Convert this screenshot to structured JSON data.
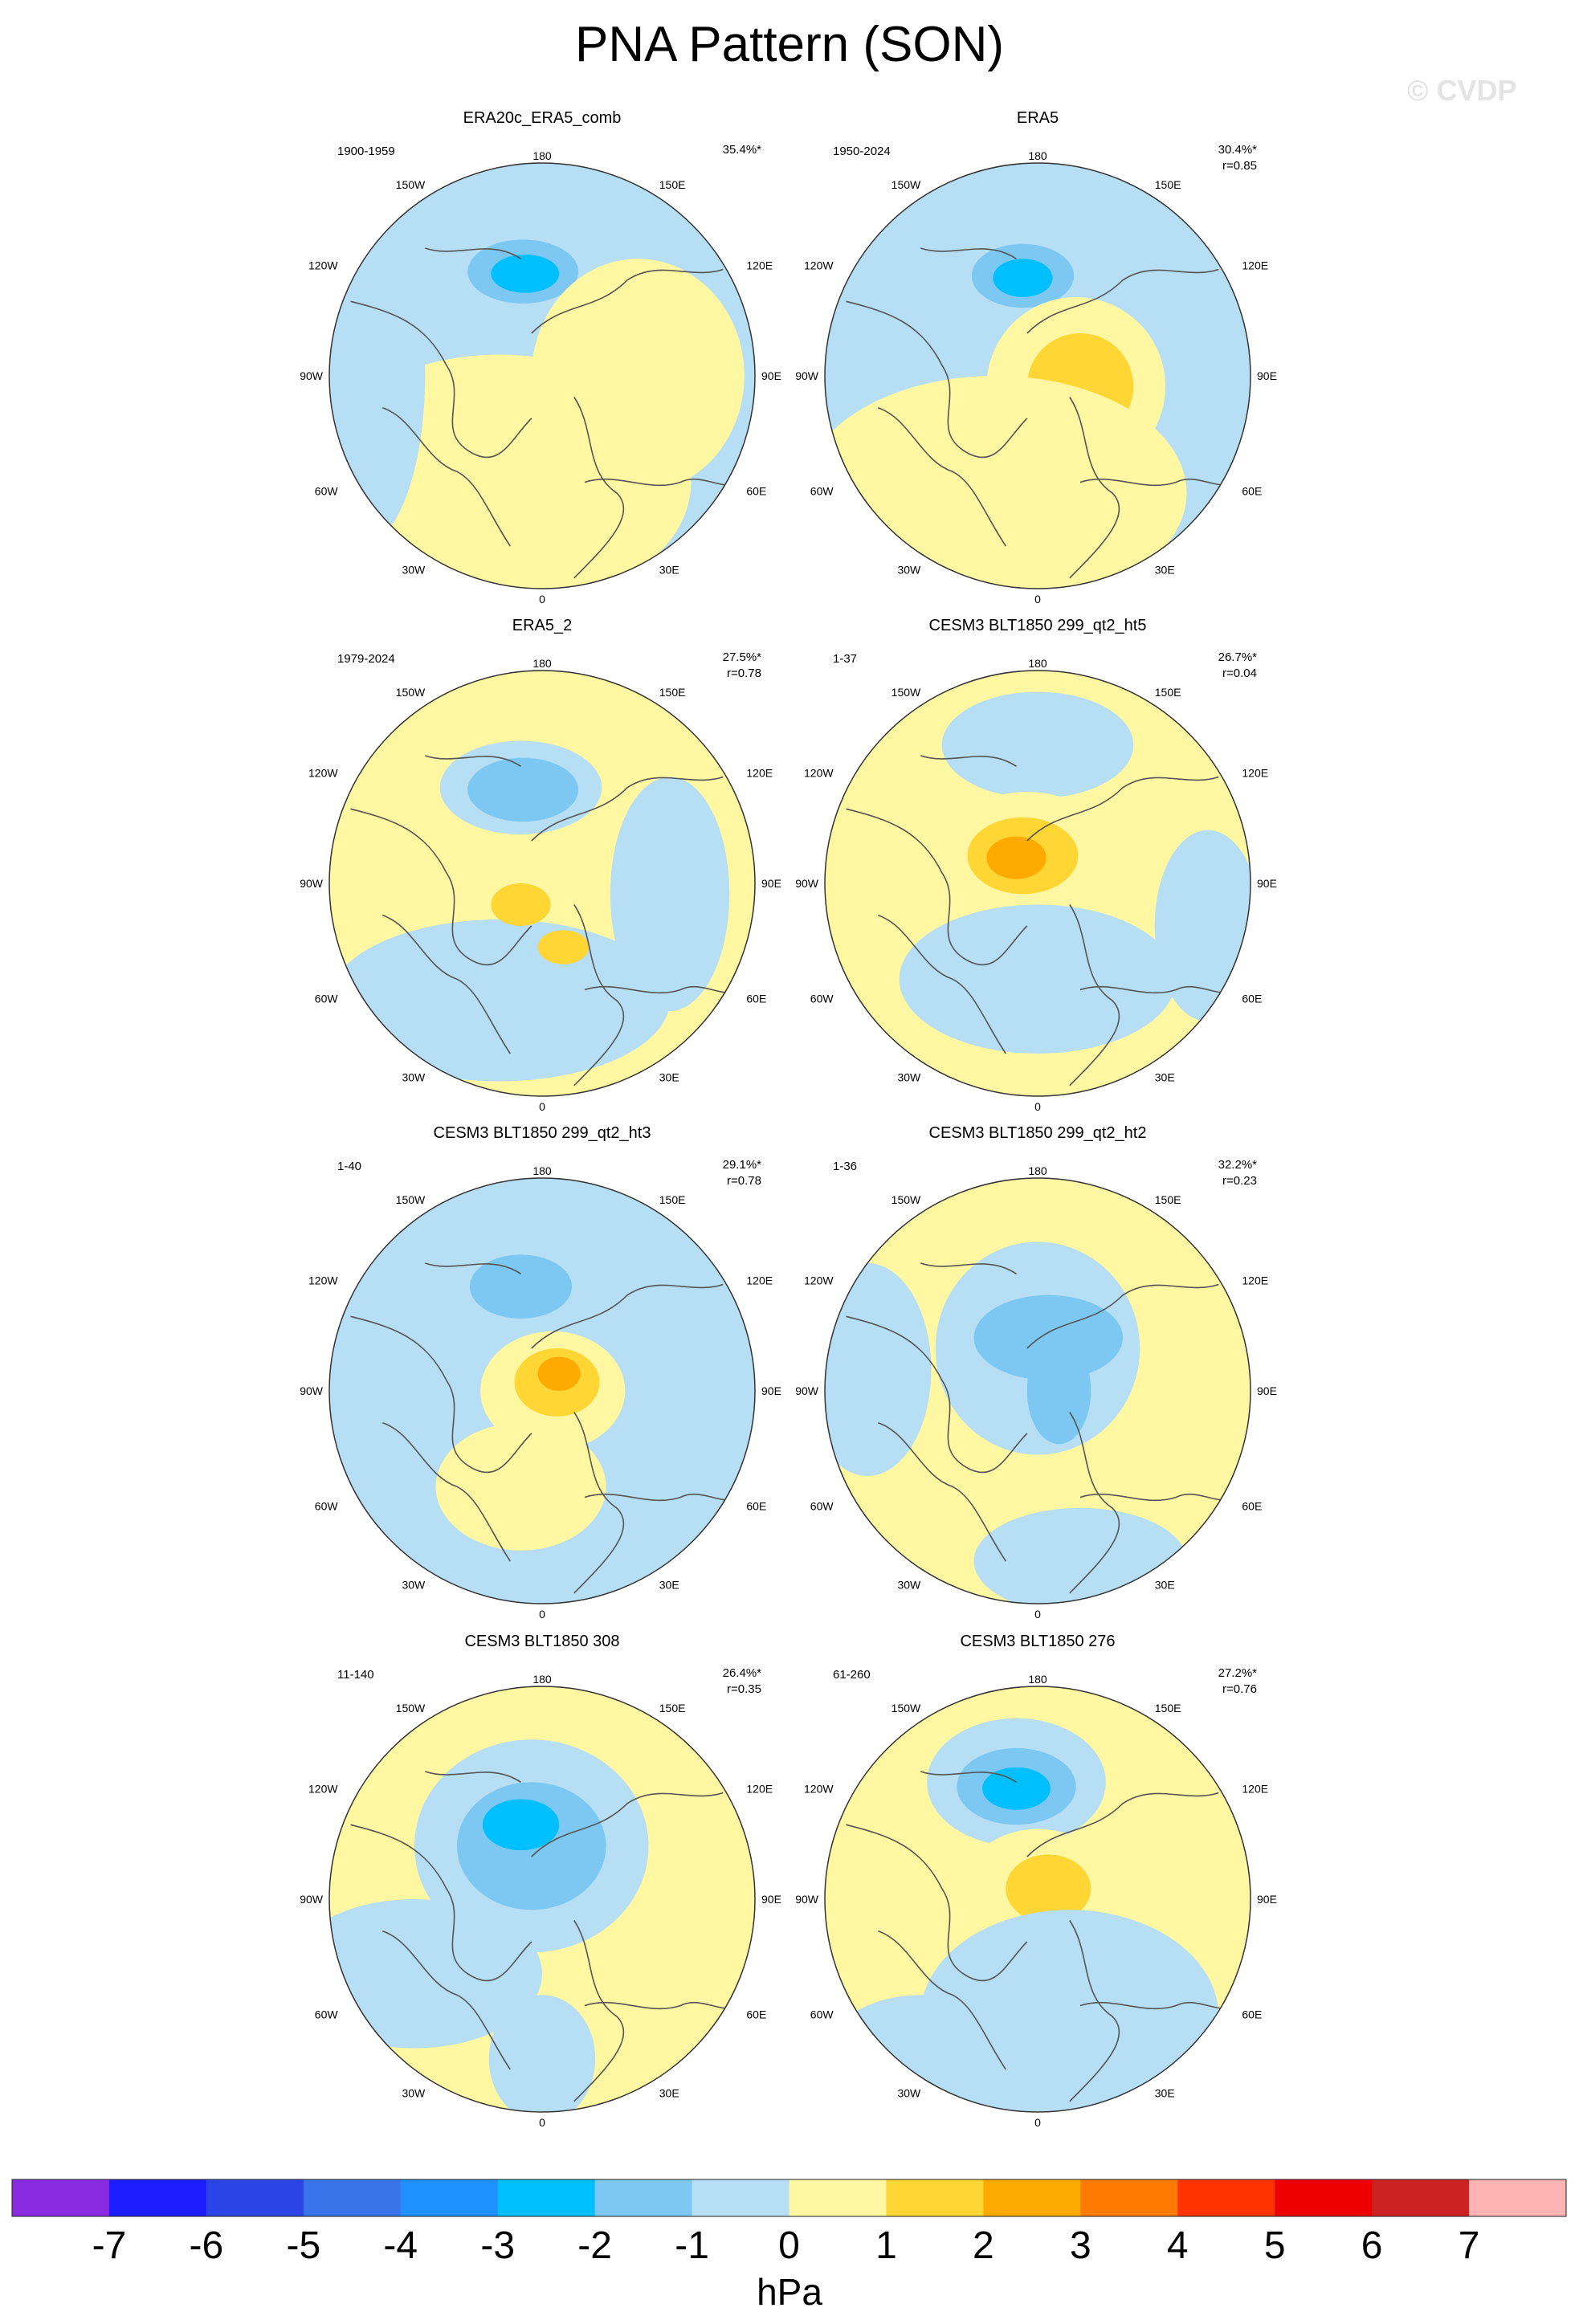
{
  "title": "PNA Pattern (SON)",
  "watermark": "© CVDP",
  "colors": {
    "ocean_light_blue": "#b6def4",
    "pale_yellow": "#fff7a2",
    "coast": "#555555"
  },
  "map_labels": {
    "top": "180",
    "bottom": "0",
    "l150": "150W",
    "l120": "120W",
    "l90": "90W",
    "l60": "60W",
    "l30": "30W",
    "r150": "150E",
    "r120": "120E",
    "r90": "90E",
    "r60": "60E",
    "r30": "30E"
  },
  "panels": [
    {
      "title": "ERA20c_ERA5_comb",
      "years": "1900-1959",
      "pct": "35.4%*",
      "r": "",
      "base": 0,
      "blobs": [
        [
          -0.1,
          -0.5,
          0.38,
          0.22,
          -1
        ],
        [
          -0.09,
          -0.49,
          0.26,
          0.15,
          -2
        ],
        [
          -0.08,
          -0.48,
          0.16,
          0.09,
          -3
        ],
        [
          0.1,
          0.15,
          0.14,
          0.1,
          1
        ],
        [
          -0.2,
          0.5,
          0.9,
          0.6,
          1
        ],
        [
          0.45,
          0.0,
          0.5,
          0.55,
          1
        ],
        [
          -0.85,
          0.0,
          0.3,
          0.8,
          -1
        ]
      ]
    },
    {
      "title": "ERA5",
      "years": "1950-2024",
      "pct": "30.4%*",
      "r": "r=0.85",
      "base": 0,
      "blobs": [
        [
          -0.08,
          -0.48,
          0.34,
          0.22,
          -1
        ],
        [
          -0.07,
          -0.47,
          0.24,
          0.15,
          -2
        ],
        [
          -0.07,
          -0.46,
          0.14,
          0.09,
          -3
        ],
        [
          0.18,
          0.05,
          0.42,
          0.42,
          1
        ],
        [
          0.2,
          0.05,
          0.25,
          0.25,
          2
        ],
        [
          -0.2,
          0.55,
          0.9,
          0.55,
          1
        ]
      ]
    },
    {
      "title": "ERA5_2",
      "years": "1979-2024",
      "pct": "27.5%*",
      "r": "r=0.78",
      "base": 1,
      "blobs": [
        [
          -0.1,
          -0.45,
          0.38,
          0.22,
          -1
        ],
        [
          -0.09,
          -0.44,
          0.26,
          0.15,
          -2
        ],
        [
          -0.2,
          0.55,
          0.8,
          0.38,
          -1
        ],
        [
          0.6,
          0.05,
          0.28,
          0.55,
          -1
        ],
        [
          -0.1,
          0.1,
          0.14,
          0.1,
          2
        ],
        [
          0.1,
          0.3,
          0.12,
          0.08,
          2
        ]
      ]
    },
    {
      "title": "CESM3 BLT1850 299_qt2_ht5",
      "years": "1-37",
      "pct": "26.7%*",
      "r": "r=0.04",
      "base": 1,
      "blobs": [
        [
          0.0,
          -0.65,
          0.45,
          0.25,
          -1
        ],
        [
          -0.1,
          -0.55,
          0.16,
          0.1,
          -1
        ],
        [
          -0.05,
          -0.15,
          0.4,
          0.28,
          1
        ],
        [
          -0.07,
          -0.13,
          0.26,
          0.18,
          2
        ],
        [
          -0.1,
          -0.12,
          0.14,
          0.1,
          3
        ],
        [
          0.0,
          0.45,
          0.65,
          0.35,
          -1
        ],
        [
          0.8,
          0.2,
          0.25,
          0.45,
          -1
        ]
      ]
    },
    {
      "title": "CESM3 BLT1850 299_qt2_ht3",
      "years": "1-40",
      "pct": "29.1%*",
      "r": "r=0.78",
      "base": 0,
      "blobs": [
        [
          -0.1,
          -0.5,
          0.34,
          0.22,
          -1
        ],
        [
          -0.1,
          -0.49,
          0.24,
          0.15,
          -2
        ],
        [
          0.05,
          0.0,
          0.34,
          0.28,
          1
        ],
        [
          0.07,
          -0.04,
          0.2,
          0.16,
          2
        ],
        [
          0.08,
          -0.08,
          0.1,
          0.08,
          3
        ],
        [
          -0.1,
          0.45,
          0.4,
          0.3,
          1
        ]
      ]
    },
    {
      "title": "CESM3 BLT1850 299_qt2_ht2",
      "years": "1-36",
      "pct": "32.2%*",
      "r": "r=0.23",
      "base": 1,
      "blobs": [
        [
          0.0,
          -0.2,
          0.48,
          0.5,
          -1
        ],
        [
          0.05,
          -0.25,
          0.35,
          0.2,
          -2
        ],
        [
          0.1,
          0.0,
          0.15,
          0.25,
          -2
        ],
        [
          -0.8,
          -0.1,
          0.3,
          0.5,
          -1
        ],
        [
          0.2,
          0.8,
          0.5,
          0.25,
          -1
        ]
      ]
    },
    {
      "title": "CESM3 BLT1850 308",
      "years": "11-140",
      "pct": "26.4%*",
      "r": "r=0.35",
      "base": 1,
      "blobs": [
        [
          -0.05,
          -0.25,
          0.55,
          0.5,
          -1
        ],
        [
          -0.05,
          -0.25,
          0.35,
          0.3,
          -2
        ],
        [
          -0.1,
          -0.35,
          0.18,
          0.12,
          -3
        ],
        [
          -0.6,
          0.35,
          0.6,
          0.35,
          -1
        ],
        [
          0.0,
          0.75,
          0.25,
          0.3,
          -1
        ]
      ]
    },
    {
      "title": "CESM3 BLT1850 276",
      "years": "61-260",
      "pct": "27.2%*",
      "r": "r=0.76",
      "base": 1,
      "blobs": [
        [
          -0.1,
          -0.55,
          0.42,
          0.3,
          -1
        ],
        [
          -0.1,
          -0.53,
          0.28,
          0.18,
          -2
        ],
        [
          -0.1,
          -0.52,
          0.16,
          0.1,
          -3
        ],
        [
          0.0,
          -0.05,
          0.35,
          0.28,
          1
        ],
        [
          0.05,
          -0.05,
          0.2,
          0.16,
          2
        ],
        [
          0.15,
          0.55,
          0.7,
          0.5,
          -1
        ],
        [
          -0.55,
          0.75,
          0.45,
          0.3,
          -1
        ]
      ]
    }
  ],
  "colorbar": {
    "unit": "hPa",
    "colors": [
      "#8a2be2",
      "#1c1cff",
      "#2b44e6",
      "#3a74ea",
      "#1e90ff",
      "#00bfff",
      "#7dc8f2",
      "#b6def4",
      "#fff7a2",
      "#ffd633",
      "#ffaa00",
      "#ff7a00",
      "#ff3300",
      "#ee0000",
      "#cc2222",
      "#ffb3b3"
    ],
    "labels": [
      "-7",
      "-6",
      "-5",
      "-4",
      "-3",
      "-2",
      "-1",
      "0",
      "1",
      "2",
      "3",
      "4",
      "5",
      "6",
      "7"
    ]
  }
}
